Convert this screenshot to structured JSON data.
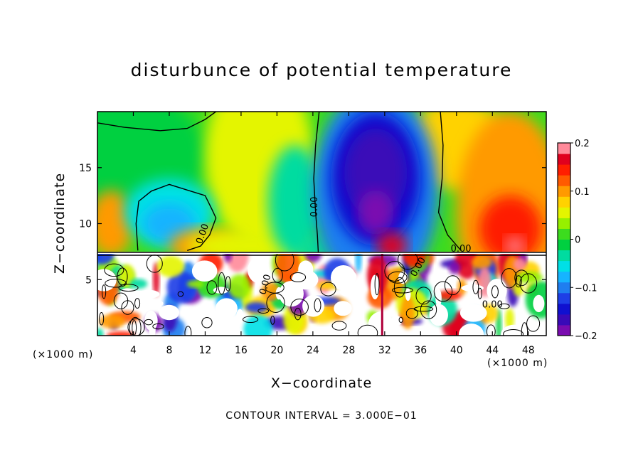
{
  "chart_data": {
    "type": "heatmap",
    "title": "disturbunce of potential temperature",
    "xlabel": "X−coordinate",
    "ylabel": "Z−coordinate",
    "x_unit_label": "(×1000 m)",
    "z_unit_label": "(×1000 m)",
    "xlim": [
      0,
      50
    ],
    "ylim": [
      0,
      20
    ],
    "x_ticks": [
      4,
      8,
      12,
      16,
      20,
      24,
      28,
      32,
      36,
      40,
      44,
      48
    ],
    "x_tick_labels": [
      "4",
      "8",
      "12",
      "16",
      "20",
      "24",
      "28",
      "32",
      "36",
      "40",
      "44",
      "48"
    ],
    "y_ticks": [
      5,
      10,
      15
    ],
    "y_tick_labels": [
      "5",
      "10",
      "15"
    ],
    "colorbar": {
      "min": -0.2,
      "max": 0.2,
      "ticks": [
        0.2,
        0.1,
        0,
        -0.1,
        -0.2
      ],
      "tick_labels": [
        "0.2",
        "0.1",
        "0",
        "−0.1",
        "−0.2"
      ],
      "colors": [
        "#7a0cb0",
        "#3a0ab8",
        "#1010d0",
        "#1e3ee6",
        "#1f7ef0",
        "#16b4ff",
        "#00e0e6",
        "#00dca0",
        "#00d040",
        "#3cdc1e",
        "#96f000",
        "#e4f500",
        "#ffd200",
        "#ff9a00",
        "#ff5a00",
        "#ff1e00",
        "#e0001e",
        "#ff8a9a"
      ]
    },
    "contour_interval_text": "CONTOUR INTERVAL = 3.000E−01",
    "contour_labels": [
      "0.00",
      "0.00",
      "0.00",
      "0.00",
      "0.00",
      "0.00"
    ],
    "boundary_z": 7.3
  }
}
